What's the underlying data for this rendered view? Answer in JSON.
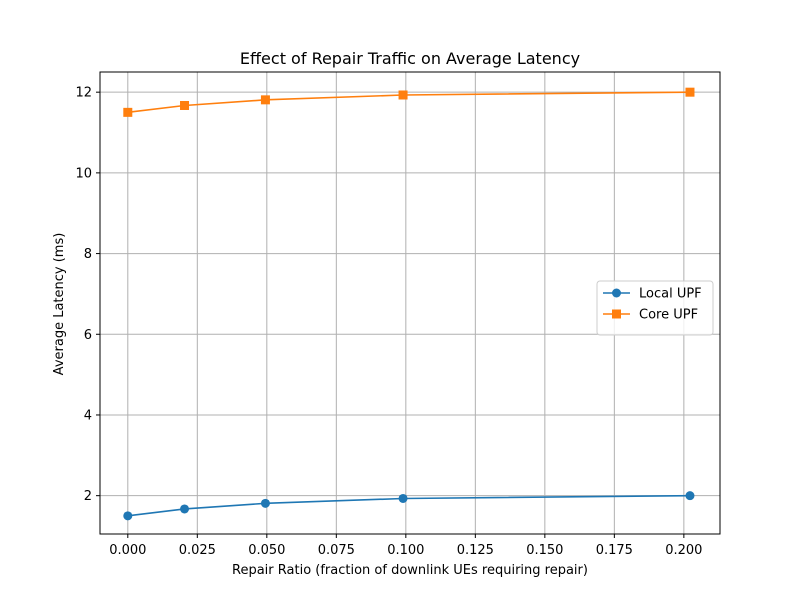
{
  "chart_data": {
    "type": "line",
    "title": "Effect of Repair Traffic on Average Latency",
    "xlabel": "Repair Ratio (fraction of downlink UEs requiring repair)",
    "ylabel": "Average Latency (ms)",
    "xlim": [
      -0.01,
      0.213
    ],
    "ylim": [
      1.05,
      12.5
    ],
    "xticks": [
      0.0,
      0.025,
      0.05,
      0.075,
      0.1,
      0.125,
      0.15,
      0.175,
      0.2
    ],
    "xtick_labels": [
      "0.000",
      "0.025",
      "0.050",
      "0.075",
      "0.100",
      "0.125",
      "0.150",
      "0.175",
      "0.200"
    ],
    "yticks": [
      2,
      4,
      6,
      8,
      10,
      12
    ],
    "ytick_labels": [
      "2",
      "4",
      "6",
      "8",
      "10",
      "12"
    ],
    "grid": true,
    "legend_position": "center-right",
    "x": [
      0.0,
      0.0204,
      0.0495,
      0.099,
      0.2022
    ],
    "series": [
      {
        "name": "Local UPF",
        "values": [
          1.5,
          1.67,
          1.81,
          1.93,
          2.0
        ],
        "color": "#1f77b4",
        "marker": "circle"
      },
      {
        "name": "Core UPF",
        "values": [
          11.5,
          11.67,
          11.81,
          11.93,
          12.0
        ],
        "color": "#ff7f0e",
        "marker": "square"
      }
    ]
  }
}
